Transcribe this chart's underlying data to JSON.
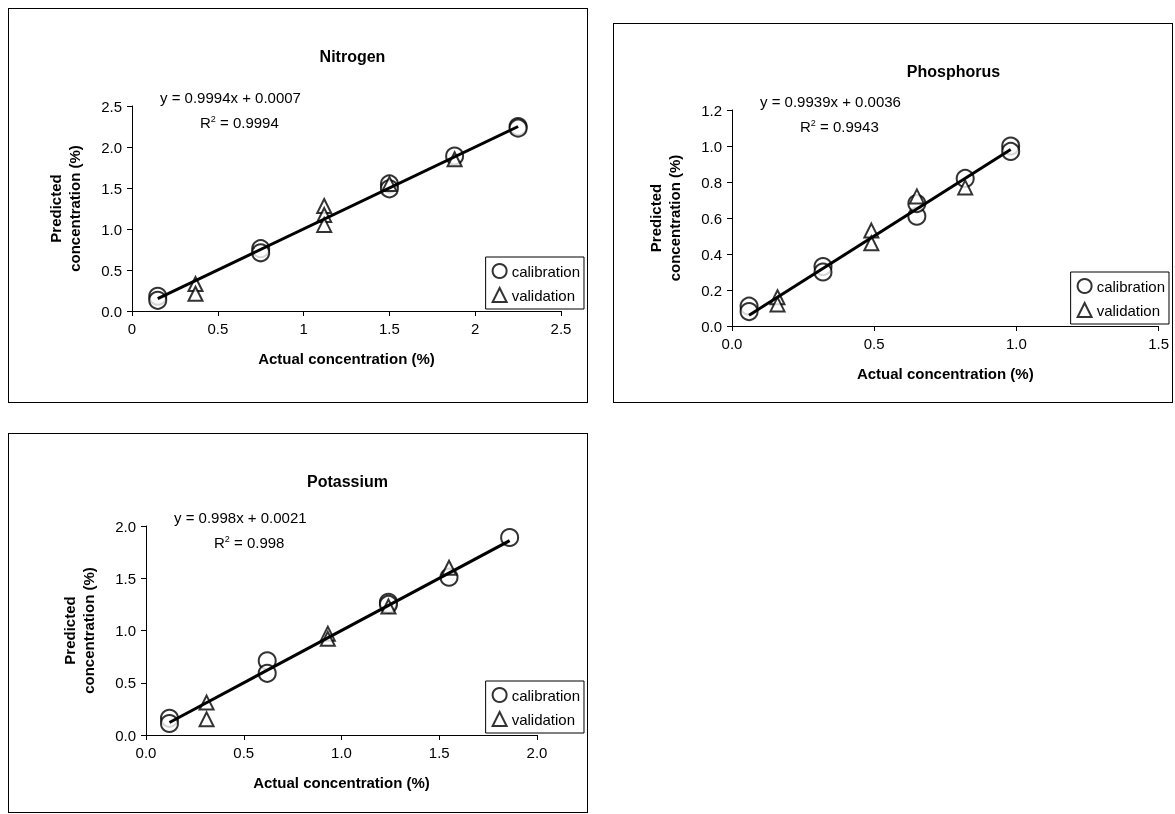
{
  "chart_data": [
    {
      "type": "scatter",
      "title": "Nitrogen",
      "xlabel": "Actual concentration (%)",
      "ylabel": "Predicted\nconcentration (%)",
      "annotations": [
        "y = 0.9994x + 0.0007",
        "R$^{2}$ = 0.9994"
      ],
      "xlim": [
        0,
        2.5
      ],
      "xticks": [
        0,
        0.5,
        1,
        1.5,
        2,
        2.5
      ],
      "ylim": [
        0,
        2.5
      ],
      "yticks": [
        {
          "value": 0,
          "label": "0.0"
        },
        {
          "value": 0.5,
          "label": "0.5"
        },
        {
          "value": 1,
          "label": "1.0"
        },
        {
          "value": 1.5,
          "label": "1.5"
        },
        {
          "value": 2,
          "label": "2.0"
        },
        {
          "value": 2.5,
          "label": "2.5"
        }
      ],
      "grid": false,
      "legend": "bottom right",
      "series": [
        {
          "name": "calibration",
          "marker": "circle",
          "color": "#000000",
          "x": [
            0.15,
            0.15,
            0.75,
            0.75,
            1.5,
            1.5,
            1.88,
            2.25,
            2.25
          ],
          "values": [
            0.18,
            0.13,
            0.76,
            0.71,
            1.55,
            1.49,
            1.89,
            2.25,
            2.23
          ]
        },
        {
          "name": "validation",
          "marker": "triangle",
          "color": "#000000",
          "x": [
            0.37,
            0.37,
            1.12,
            1.12,
            1.12,
            1.5,
            1.88
          ],
          "values": [
            0.33,
            0.21,
            1.28,
            1.17,
            1.05,
            1.55,
            1.85
          ]
        },
        {
          "type": "line",
          "marker": "none",
          "color": "#000000",
          "x": [
            0.15,
            2.25
          ],
          "values": [
            0.15,
            2.25
          ]
        }
      ]
    },
    {
      "type": "scatter",
      "title": "Phosphorus",
      "xlabel": "Actual concentration (%)",
      "ylabel": "Predicted\nconcentration (%)",
      "annotations": [
        "y = 0.9939x + 0.0036",
        "R$^{2}$ = 0.9943"
      ],
      "xlim": [
        0,
        1.5
      ],
      "xticks": [
        {
          "value": 0,
          "label": "0.0"
        },
        {
          "value": 0.5,
          "label": "0.5"
        },
        {
          "value": 1,
          "label": "1.0"
        },
        {
          "value": 1.5,
          "label": "1.5"
        }
      ],
      "ylim": [
        0,
        1.2
      ],
      "yticks": [
        {
          "value": 0,
          "label": "0.0"
        },
        {
          "value": 0.2,
          "label": "0.2"
        },
        {
          "value": 0.4,
          "label": "0.4"
        },
        {
          "value": 0.6,
          "label": "0.6"
        },
        {
          "value": 0.8,
          "label": "0.8"
        },
        {
          "value": 1,
          "label": "1.0"
        },
        {
          "value": 1.2,
          "label": "1.2"
        }
      ],
      "grid": false,
      "legend": "bottom right",
      "series": [
        {
          "name": "calibration",
          "marker": "circle",
          "color": "#000000",
          "x": [
            0.06,
            0.06,
            0.32,
            0.32,
            0.65,
            0.65,
            0.82,
            0.98,
            0.98
          ],
          "values": [
            0.11,
            0.08,
            0.33,
            0.3,
            0.61,
            0.68,
            0.82,
            1.0,
            0.97
          ]
        },
        {
          "name": "validation",
          "marker": "triangle",
          "color": "#000000",
          "x": [
            0.16,
            0.16,
            0.49,
            0.49,
            0.65,
            0.82
          ],
          "values": [
            0.16,
            0.12,
            0.53,
            0.46,
            0.72,
            0.77
          ]
        },
        {
          "type": "line",
          "marker": "none",
          "color": "#000000",
          "x": [
            0.06,
            0.98
          ],
          "values": [
            0.06,
            0.98
          ]
        }
      ]
    },
    {
      "type": "scatter",
      "title": "Potassium",
      "xlabel": "Actual concentration (%)",
      "ylabel": "Predicted\nconcentration (%)",
      "annotations": [
        "y = 0.998x + 0.0021",
        "R$^{2}$ = 0.998"
      ],
      "xlim": [
        0,
        2
      ],
      "xticks": [
        {
          "value": 0,
          "label": "0.0"
        },
        {
          "value": 0.5,
          "label": "0.5"
        },
        {
          "value": 1,
          "label": "1.0"
        },
        {
          "value": 1.5,
          "label": "1.5"
        },
        {
          "value": 2,
          "label": "2.0"
        }
      ],
      "ylim": [
        0,
        2
      ],
      "yticks": [
        {
          "value": 0,
          "label": "0.0"
        },
        {
          "value": 0.5,
          "label": "0.5"
        },
        {
          "value": 1,
          "label": "1.0"
        },
        {
          "value": 1.5,
          "label": "1.5"
        },
        {
          "value": 2,
          "label": "2.0"
        }
      ],
      "grid": false,
      "legend": "bottom right",
      "series": [
        {
          "name": "calibration",
          "marker": "circle",
          "color": "#000000",
          "x": [
            0.12,
            0.12,
            0.62,
            0.62,
            1.24,
            1.24,
            1.55,
            1.86
          ],
          "values": [
            0.16,
            0.11,
            0.71,
            0.59,
            1.27,
            1.25,
            1.51,
            1.89
          ]
        },
        {
          "name": "validation",
          "marker": "triangle",
          "color": "#000000",
          "x": [
            0.31,
            0.31,
            0.93,
            0.93,
            1.24,
            1.55
          ],
          "values": [
            0.31,
            0.15,
            0.97,
            0.92,
            1.23,
            1.6
          ]
        },
        {
          "type": "line",
          "marker": "none",
          "color": "#000000",
          "x": [
            0.12,
            1.86
          ],
          "values": [
            0.12,
            1.86
          ]
        }
      ]
    }
  ]
}
